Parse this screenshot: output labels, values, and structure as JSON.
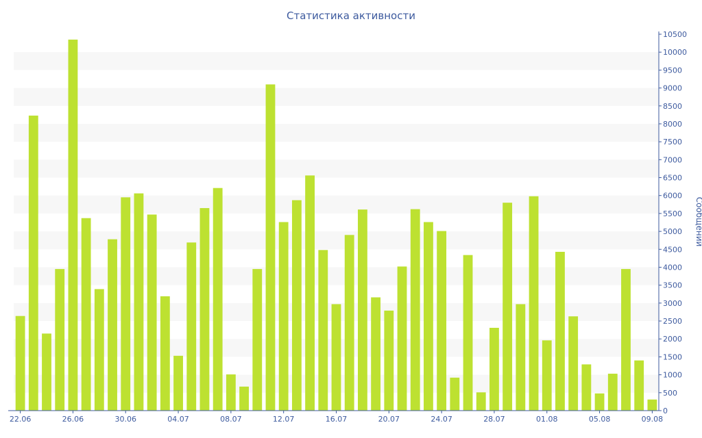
{
  "chart_data": {
    "type": "bar",
    "title": "Статистика активности",
    "ylabel": "Сообщений",
    "xlabel": "",
    "ylim": [
      0,
      10500
    ],
    "y_ticks": [
      0,
      500,
      1000,
      1500,
      2000,
      2500,
      3000,
      3500,
      4000,
      4500,
      5000,
      5500,
      6000,
      6500,
      7000,
      7500,
      8000,
      8500,
      9000,
      9500,
      10000,
      10500
    ],
    "y_axis_side": "right",
    "x_tick_labels": [
      {
        "index": 0,
        "label": "22.06"
      },
      {
        "index": 4,
        "label": "26.06"
      },
      {
        "index": 8,
        "label": "30.06"
      },
      {
        "index": 12,
        "label": "04.07"
      },
      {
        "index": 16,
        "label": "08.07"
      },
      {
        "index": 20,
        "label": "12.07"
      },
      {
        "index": 24,
        "label": "16.07"
      },
      {
        "index": 28,
        "label": "20.07"
      },
      {
        "index": 32,
        "label": "24.07"
      },
      {
        "index": 36,
        "label": "28.07"
      },
      {
        "index": 40,
        "label": "01.08"
      },
      {
        "index": 44,
        "label": "05.08"
      },
      {
        "index": 48,
        "label": "09.08"
      }
    ],
    "categories": [
      "22.06",
      "23.06",
      "24.06",
      "25.06",
      "26.06",
      "27.06",
      "28.06",
      "29.06",
      "30.06",
      "01.07",
      "02.07",
      "03.07",
      "04.07",
      "05.07",
      "06.07",
      "07.07",
      "08.07",
      "09.07",
      "10.07",
      "11.07",
      "12.07",
      "13.07",
      "14.07",
      "15.07",
      "16.07",
      "17.07",
      "18.07",
      "19.07",
      "20.07",
      "21.07",
      "22.07",
      "23.07",
      "24.07",
      "25.07",
      "26.07",
      "27.07",
      "28.07",
      "29.07",
      "30.07",
      "31.07",
      "01.08",
      "02.08",
      "03.08",
      "04.08",
      "05.08",
      "06.08",
      "07.08",
      "08.08",
      "09.08"
    ],
    "values": [
      2640,
      8230,
      2150,
      3950,
      10350,
      5370,
      3390,
      4780,
      5950,
      6060,
      5470,
      3190,
      1530,
      4690,
      5650,
      6210,
      1010,
      670,
      3950,
      9100,
      5260,
      5870,
      6560,
      4480,
      2970,
      4900,
      5610,
      3160,
      2790,
      4020,
      5620,
      5260,
      5010,
      920,
      4340,
      510,
      2310,
      5800,
      2970,
      5980,
      1960,
      4430,
      2630,
      1290,
      480,
      1030,
      3950,
      1400,
      310
    ],
    "grid": "horizontal alternating bands",
    "legend": "none",
    "colors": {
      "bar": "#bde131",
      "axis": "#3d5a9e",
      "band": "#f7f7f7"
    }
  }
}
